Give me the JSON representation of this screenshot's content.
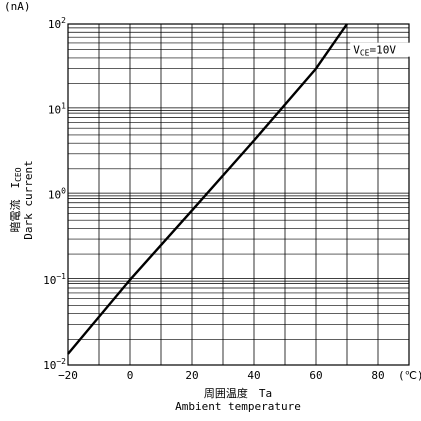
{
  "chart_data": {
    "type": "line",
    "unit_top_left": "(nA)",
    "xlabel_ja": "周囲温度　Ta",
    "xlabel_en": "Ambient temperature",
    "ylabel_ja": "暗電流　I",
    "ylabel_sub": "CEO",
    "ylabel_en": "Dark current",
    "x_ticks": [
      "−20",
      "0",
      "20",
      "40",
      "60",
      "80"
    ],
    "x_tick_values": [
      -20,
      0,
      20,
      40,
      60,
      80
    ],
    "x_unit": "(℃)",
    "y_ticks": [
      {
        "base": "10",
        "exp": "2",
        "value": 100
      },
      {
        "base": "10",
        "exp": "1",
        "value": 10
      },
      {
        "base": "10",
        "exp": "0",
        "value": 1
      },
      {
        "base": "10",
        "exp": "−1",
        "value": 0.1
      },
      {
        "base": "10",
        "exp": "−2",
        "value": 0.01
      }
    ],
    "xlim": [
      -20,
      90
    ],
    "ylim": [
      0.01,
      100
    ],
    "yscale": "log",
    "grid": true,
    "series": [
      {
        "points": [
          [
            -20,
            0.0135
          ],
          [
            0,
            0.1
          ],
          [
            20,
            0.65
          ],
          [
            40,
            4.3
          ],
          [
            60,
            30
          ],
          [
            70,
            100
          ]
        ]
      }
    ],
    "annotation": {
      "main": "V",
      "sub": "CE",
      "rest": "=10V",
      "x": 72,
      "y": 50
    }
  }
}
